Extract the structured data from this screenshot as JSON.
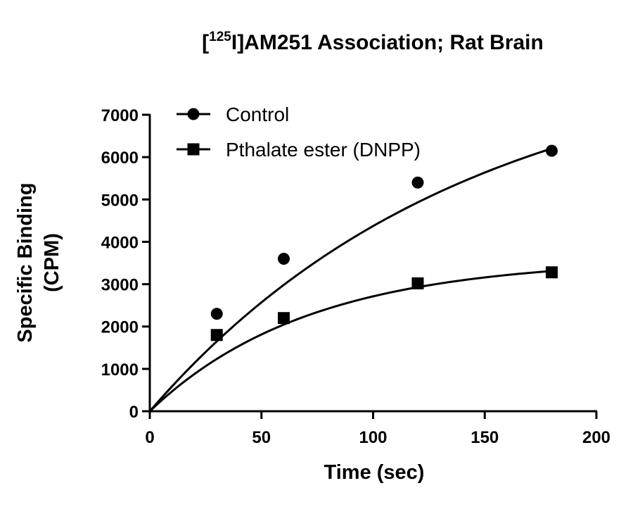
{
  "chart_data": {
    "type": "scatter",
    "title": {
      "prefix": "[",
      "superscript": "125",
      "suffix": "I]AM251 Association; Rat Brain"
    },
    "xlabel": "Time (sec)",
    "ylabel_lines": [
      "Specific Binding",
      "(CPM)"
    ],
    "xlim": [
      0,
      200
    ],
    "ylim": [
      0,
      7000
    ],
    "xticks": [
      0,
      50,
      100,
      150,
      200
    ],
    "yticks": [
      0,
      1000,
      2000,
      3000,
      4000,
      5000,
      6000,
      7000
    ],
    "grid": false,
    "legend_position": "top-left",
    "series": [
      {
        "name": "Control",
        "marker": "circle",
        "color": "#000000",
        "x": [
          30,
          60,
          120,
          180
        ],
        "y": [
          2300,
          3600,
          5400,
          6150
        ],
        "fit": {
          "model": "one-phase association",
          "ymax": 8600,
          "k": 0.0071
        }
      },
      {
        "name": "Pthalate ester (DNPP)",
        "marker": "square",
        "color": "#000000",
        "x": [
          30,
          60,
          120,
          180
        ],
        "y": [
          1800,
          2200,
          3020,
          3280
        ],
        "fit": {
          "model": "one-phase association",
          "ymax": 3600,
          "k": 0.014
        }
      }
    ]
  }
}
